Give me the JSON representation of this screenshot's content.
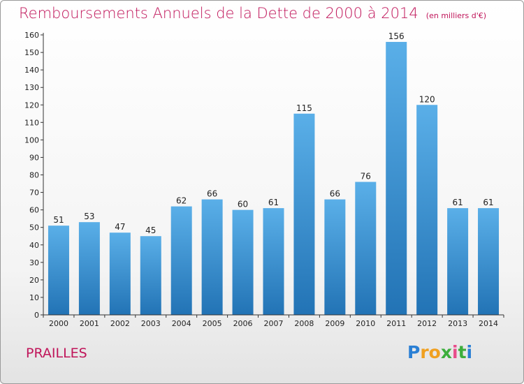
{
  "chart_data": {
    "type": "bar",
    "title": "Remboursements Annuels de la Dette de 2000 à 2014",
    "subtitle": "(en milliers d'€)",
    "categories": [
      "2000",
      "2001",
      "2002",
      "2003",
      "2004",
      "2005",
      "2006",
      "2007",
      "2008",
      "2009",
      "2010",
      "2011",
      "2012",
      "2013",
      "2014"
    ],
    "values": [
      51,
      53,
      47,
      45,
      62,
      66,
      60,
      61,
      115,
      66,
      76,
      156,
      120,
      61,
      61
    ],
    "ylim": [
      0,
      160
    ],
    "yticks": [
      0,
      10,
      20,
      30,
      40,
      50,
      60,
      70,
      80,
      90,
      100,
      110,
      120,
      130,
      140,
      150,
      160
    ],
    "xlabel": "",
    "ylabel": "",
    "grid": false,
    "bar_color_top": "#5aafe8",
    "bar_color_bottom": "#2273b5"
  },
  "footer": {
    "commune": "PRAILLES",
    "logo_letters": [
      "P",
      "r",
      "o",
      "x",
      "i",
      "t",
      "i"
    ],
    "logo_colors": [
      "#2a7fd4",
      "#f0a020",
      "#f0a020",
      "#3cae3c",
      "#e84c8a",
      "#3cae3c",
      "#2a7fd4"
    ]
  },
  "colors": {
    "title": "#c0155a",
    "axis": "#333333"
  }
}
